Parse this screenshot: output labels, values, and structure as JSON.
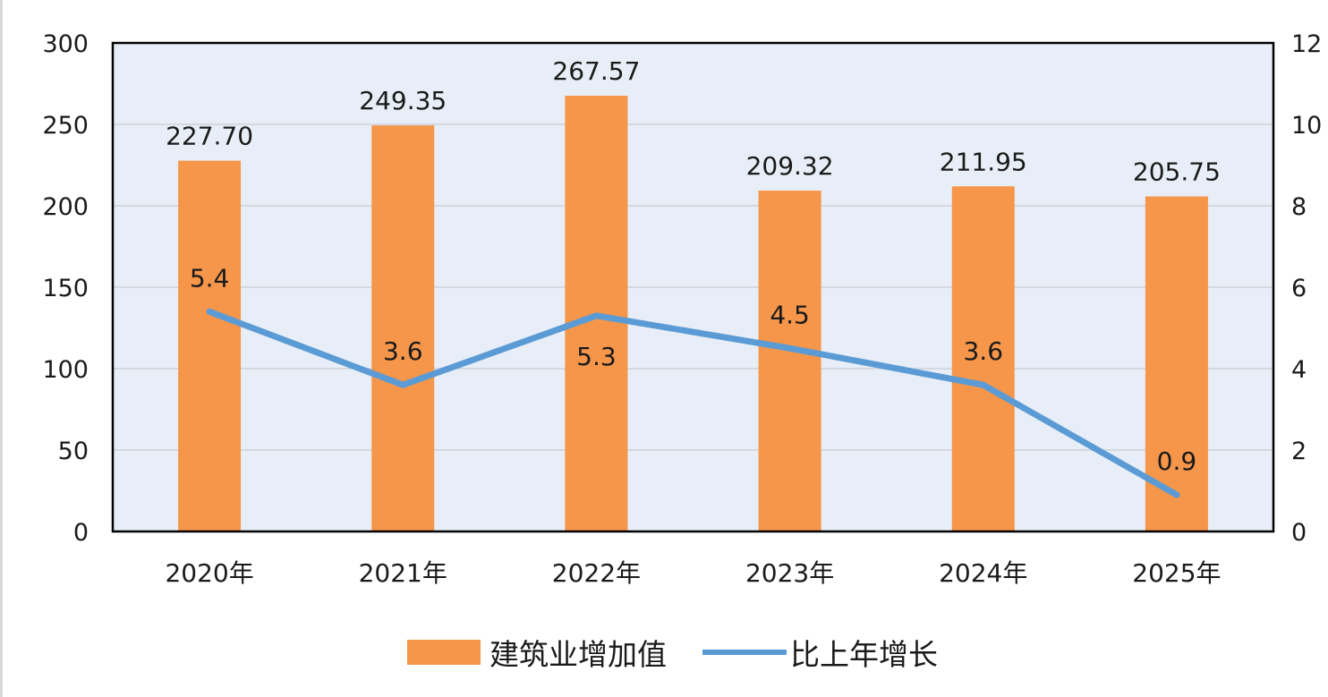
{
  "chart_data": {
    "type": "bar",
    "categories": [
      "2020年",
      "2021年",
      "2022年",
      "2023年",
      "2024年",
      "2025年"
    ],
    "series": [
      {
        "name": "建筑业增加值",
        "type": "bar",
        "axis": "left",
        "values": [
          227.7,
          249.35,
          267.57,
          209.32,
          211.95,
          205.75
        ],
        "labels": [
          "227.70",
          "249.35",
          "267.57",
          "209.32",
          "211.95",
          "205.75"
        ],
        "color": "#f5964a"
      },
      {
        "name": "比上年增长",
        "type": "line",
        "axis": "right",
        "values": [
          5.4,
          3.6,
          5.3,
          4.5,
          3.6,
          0.9
        ],
        "labels": [
          "5.4",
          "3.6",
          "5.3",
          "4.5",
          "3.6",
          "0.9"
        ],
        "color": "#5b9bd5"
      }
    ],
    "left_axis": {
      "min": 0,
      "max": 300,
      "ticks": [
        "0",
        "50",
        "100",
        "150",
        "200",
        "250",
        "300"
      ]
    },
    "right_axis": {
      "min": 0,
      "max": 12,
      "ticks": [
        "0",
        "2",
        "4",
        "6",
        "8",
        "10",
        "12"
      ]
    },
    "plot_background": "#e8eef7",
    "grid": true,
    "legend": "bottom"
  }
}
